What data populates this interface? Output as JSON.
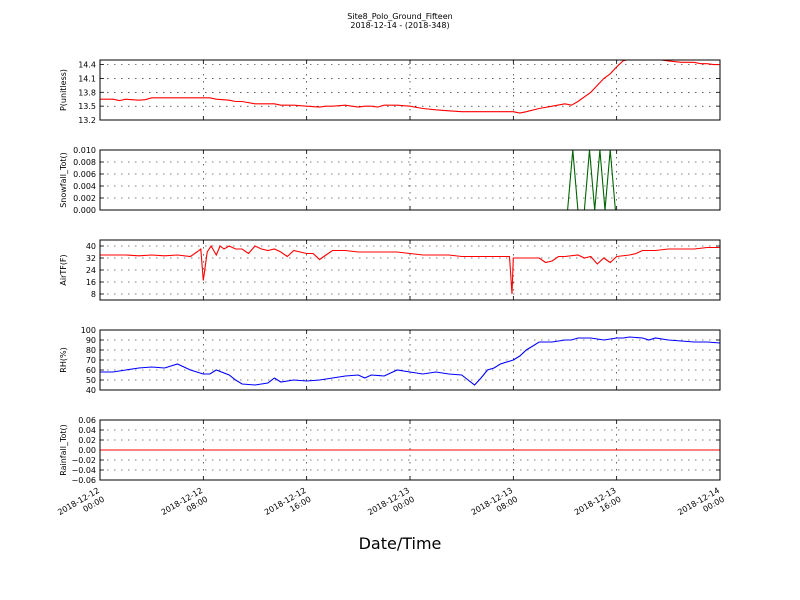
{
  "title": "Site8_Polo_Ground_Fifteen",
  "subtitle": "2018-12-14 - (2018-348)",
  "xlabel": "Date/Time",
  "x_ticks": [
    {
      "hours": 0,
      "line1": "2018-12-12",
      "line2": "00:00"
    },
    {
      "hours": 8,
      "line1": "2018-12-12",
      "line2": "08:00"
    },
    {
      "hours": 16,
      "line1": "2018-12-12",
      "line2": "16:00"
    },
    {
      "hours": 24,
      "line1": "2018-12-13",
      "line2": "00:00"
    },
    {
      "hours": 32,
      "line1": "2018-12-13",
      "line2": "08:00"
    },
    {
      "hours": 40,
      "line1": "2018-12-13",
      "line2": "16:00"
    },
    {
      "hours": 48,
      "line1": "2018-12-14",
      "line2": "00:00"
    }
  ],
  "chart_data": [
    {
      "type": "line",
      "ylabel": "P(unitless)",
      "ylim": [
        13.2,
        14.5
      ],
      "yticks": [
        13.2,
        13.5,
        13.8,
        14.1,
        14.4
      ],
      "tick_decimals": 1,
      "grid": true,
      "color": "#ff0000",
      "series": [
        {
          "x": [
            0,
            1,
            1.5,
            2,
            3,
            3.5,
            4,
            6,
            8,
            8.5,
            9,
            10,
            10.5,
            11,
            12,
            13,
            13.5,
            14,
            15,
            16,
            17,
            17.5,
            18,
            19,
            19.5,
            20,
            20.5,
            21,
            21.5,
            22,
            22.5,
            23,
            24,
            25,
            26,
            27,
            28,
            29,
            30,
            31,
            32,
            32.5,
            33,
            34,
            35,
            36,
            36.5,
            37,
            38,
            38.5,
            39,
            39.5,
            40,
            40.5,
            41,
            42,
            42.5,
            43,
            44,
            45,
            46,
            46.5,
            47,
            47.5,
            48
          ],
          "y": [
            13.65,
            13.65,
            13.62,
            13.65,
            13.63,
            13.64,
            13.68,
            13.68,
            13.68,
            13.68,
            13.65,
            13.63,
            13.6,
            13.6,
            13.55,
            13.55,
            13.55,
            13.52,
            13.52,
            13.5,
            13.48,
            13.5,
            13.5,
            13.52,
            13.5,
            13.48,
            13.5,
            13.5,
            13.48,
            13.52,
            13.52,
            13.52,
            13.5,
            13.45,
            13.42,
            13.4,
            13.38,
            13.38,
            13.38,
            13.38,
            13.38,
            13.35,
            13.38,
            13.45,
            13.5,
            13.55,
            13.52,
            13.6,
            13.8,
            13.95,
            14.1,
            14.2,
            14.35,
            14.48,
            14.52,
            14.55,
            14.52,
            14.52,
            14.48,
            14.45,
            14.45,
            14.42,
            14.42,
            14.4,
            14.4
          ]
        }
      ]
    },
    {
      "type": "line",
      "ylabel": "Snowfall_Tot()",
      "ylim": [
        0,
        0.01
      ],
      "yticks": [
        0,
        0.002,
        0.004,
        0.006,
        0.008,
        0.01
      ],
      "tick_decimals": 3,
      "grid": true,
      "color": "#006400",
      "series": [
        {
          "x": [
            0,
            36.2,
            36.6,
            37,
            37.5,
            37.9,
            38.3,
            38.7,
            39.1,
            39.5,
            39.9,
            40.3,
            48
          ],
          "y": [
            0,
            0,
            0.01,
            0,
            0,
            0.01,
            0,
            0.01,
            0,
            0.01,
            0,
            0,
            0
          ]
        }
      ]
    },
    {
      "type": "line",
      "ylabel": "AirTF(F)",
      "ylim": [
        4,
        44
      ],
      "yticks": [
        8,
        16,
        24,
        32,
        40
      ],
      "tick_decimals": 0,
      "grid": true,
      "color": "#ff0000",
      "series": [
        {
          "x": [
            0,
            1,
            2,
            3,
            4,
            5,
            6,
            7,
            7.5,
            7.8,
            8,
            8.3,
            8.6,
            9,
            9.3,
            9.6,
            10,
            10.5,
            11,
            11.5,
            12,
            12.5,
            13,
            13.5,
            14,
            14.5,
            15,
            15.5,
            16,
            16.5,
            17,
            17.5,
            18,
            19,
            20,
            21,
            22,
            23,
            24,
            25,
            26,
            27,
            28,
            29,
            30,
            31,
            31.7,
            31.9,
            32,
            32.2,
            33,
            34,
            34.5,
            35,
            35.5,
            36,
            37,
            37.5,
            38,
            38.5,
            39,
            39.5,
            40,
            41,
            41.5,
            42,
            43,
            44,
            45,
            46,
            47,
            48
          ],
          "y": [
            34,
            34,
            34,
            33.5,
            34,
            33.5,
            34,
            33,
            36,
            38,
            17,
            36,
            40,
            34,
            40,
            38,
            40,
            38,
            38,
            35,
            40,
            38,
            37,
            38,
            36,
            33,
            37,
            36,
            35,
            35,
            31,
            34,
            37,
            37,
            36,
            36,
            36,
            36,
            35,
            34,
            34,
            34,
            33,
            33,
            33,
            33,
            33,
            8,
            32,
            32,
            32,
            32,
            29,
            30,
            33,
            33,
            34,
            32,
            33,
            28,
            32,
            29,
            33,
            34,
            35,
            37,
            37,
            38,
            38,
            38,
            39,
            39
          ]
        }
      ]
    },
    {
      "type": "line",
      "ylabel": "RH(%)",
      "ylim": [
        40,
        100
      ],
      "yticks": [
        40,
        50,
        60,
        70,
        80,
        90,
        100
      ],
      "tick_decimals": 0,
      "grid": true,
      "color": "#0000ff",
      "series": [
        {
          "x": [
            0,
            1,
            2,
            3,
            4,
            5,
            6,
            7,
            8,
            8.5,
            9,
            10,
            10.5,
            11,
            12,
            13,
            13.5,
            14,
            15,
            16,
            17,
            18,
            19,
            20,
            20.5,
            21,
            22,
            23,
            24,
            25,
            26,
            27,
            28,
            28.5,
            29,
            29.5,
            30,
            30.5,
            31,
            32,
            32.5,
            33,
            34,
            35,
            36,
            36.5,
            37,
            38,
            39,
            40,
            40.5,
            41,
            42,
            42.5,
            43,
            44,
            45,
            46,
            47,
            48
          ],
          "y": [
            58,
            58,
            60,
            62,
            63,
            62,
            66,
            60,
            56,
            56,
            60,
            55,
            50,
            46,
            45,
            47,
            52,
            48,
            50,
            49,
            50,
            52,
            54,
            55,
            52,
            55,
            54,
            60,
            58,
            56,
            58,
            56,
            55,
            50,
            45,
            52,
            60,
            62,
            66,
            70,
            74,
            80,
            88,
            88,
            90,
            90,
            92,
            92,
            90,
            92,
            92,
            93,
            92,
            90,
            92,
            90,
            89,
            88,
            88,
            87
          ]
        }
      ]
    },
    {
      "type": "line",
      "ylabel": "Rainfall_Tot()",
      "ylim": [
        -0.06,
        0.06
      ],
      "yticks": [
        -0.06,
        -0.04,
        -0.02,
        0,
        0.02,
        0.04,
        0.06
      ],
      "tick_decimals": 2,
      "grid": true,
      "color": "#ff0000",
      "series": [
        {
          "x": [
            0,
            48
          ],
          "y": [
            0,
            0
          ]
        }
      ]
    }
  ]
}
